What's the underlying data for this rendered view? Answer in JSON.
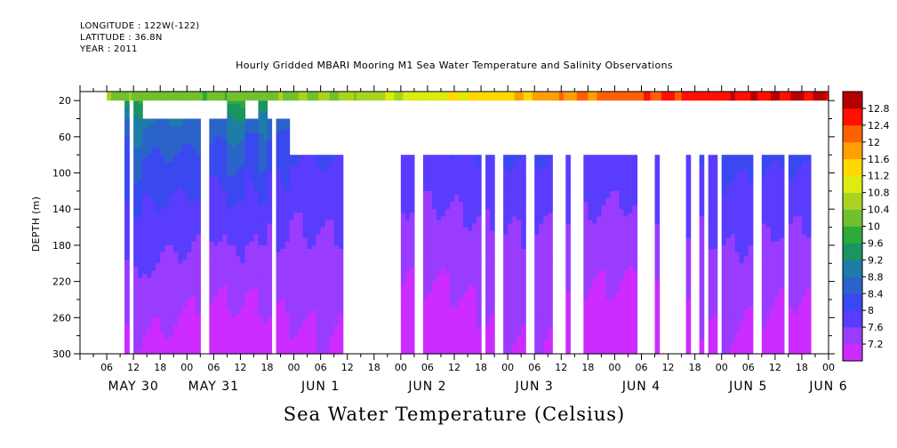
{
  "header": {
    "longitude": "LONGITUDE : 122W(-122)",
    "latitude": "LATITUDE : 36.8N",
    "year": "YEAR : 2011",
    "title": "Hourly Gridded MBARI Mooring M1 Sea Water Temperature and Salinity Observations"
  },
  "chart_data": {
    "type": "heatmap",
    "title": "Hourly Gridded MBARI Mooring M1 Sea Water Temperature and Salinity Observations",
    "xlabel": "Sea Water Temperature (Celsius)",
    "ylabel": "DEPTH (m)",
    "ylim": [
      300,
      10
    ],
    "yticks": [
      20,
      60,
      100,
      140,
      180,
      220,
      260,
      300
    ],
    "x_range_hours": [
      0,
      168
    ],
    "x_start": "May 30 2011 00:00",
    "hour_tick_labels": [
      "06",
      "12",
      "18",
      "00",
      "06",
      "12",
      "18",
      "00",
      "06",
      "12",
      "18",
      "00",
      "06",
      "12",
      "18",
      "00",
      "06",
      "12",
      "18",
      "00",
      "06",
      "12",
      "18",
      "00",
      "06",
      "12",
      "18",
      "00"
    ],
    "hour_tick_hours": [
      6,
      12,
      18,
      24,
      30,
      36,
      42,
      48,
      54,
      60,
      66,
      72,
      78,
      84,
      90,
      96,
      102,
      108,
      114,
      120,
      126,
      132,
      138,
      144,
      150,
      156,
      162,
      168
    ],
    "date_labels": [
      {
        "label": "MAY 30",
        "hour": 12
      },
      {
        "label": "MAY 31",
        "hour": 30
      },
      {
        "label": "JUN  1",
        "hour": 54
      },
      {
        "label": "JUN  2",
        "hour": 78
      },
      {
        "label": "JUN  3",
        "hour": 102
      },
      {
        "label": "JUN  4",
        "hour": 126
      },
      {
        "label": "JUN  5",
        "hour": 150
      },
      {
        "label": "JUN  6",
        "hour": 168
      }
    ],
    "colorbar": {
      "levels": [
        7.2,
        7.6,
        8,
        8.4,
        8.8,
        9.2,
        9.6,
        10,
        10.4,
        10.8,
        11.2,
        11.6,
        12,
        12.4,
        12.8
      ],
      "labels": [
        "7.2",
        "7.6",
        "8",
        "8.4",
        "8.8",
        "9.2",
        "9.6",
        "10",
        "10.4",
        "10.8",
        "11.2",
        "11.6",
        "12",
        "12.4",
        "12.8"
      ],
      "colors": [
        "#cc2cff",
        "#9a3cff",
        "#5a3cff",
        "#3a48f0",
        "#2a64c8",
        "#1e7ca8",
        "#1a9460",
        "#2eaa3a",
        "#72c030",
        "#a8d420",
        "#dcec10",
        "#ffd800",
        "#ffa000",
        "#ff6000",
        "#ff1000",
        "#b40000"
      ]
    },
    "surface_row": {
      "depth_range": [
        10,
        20
      ],
      "start_hour": 6,
      "temps_at_hours": [
        {
          "hour": 6,
          "t": 10.3
        },
        {
          "hour": 30,
          "t": 10.1
        },
        {
          "hour": 60,
          "t": 10.5
        },
        {
          "hour": 84,
          "t": 11.2
        },
        {
          "hour": 96,
          "t": 11.5
        },
        {
          "hour": 108,
          "t": 11.9
        },
        {
          "hour": 120,
          "t": 12.2
        },
        {
          "hour": 140,
          "t": 12.6
        },
        {
          "hour": 168,
          "t": 12.9
        }
      ]
    },
    "data_blocks": [
      {
        "h0": 10,
        "h1": 11,
        "top": 20,
        "sfc": 9.6
      },
      {
        "h0": 10,
        "h1": 11,
        "top": 40,
        "sfc": 9.2
      },
      {
        "h0": 12,
        "h1": 14,
        "top": 20,
        "sfc": 9.8
      },
      {
        "h0": 14,
        "h1": 27,
        "top": 40,
        "sfc": 9.4
      },
      {
        "h0": 29,
        "h1": 33,
        "top": 40,
        "sfc": 9.3
      },
      {
        "h0": 33,
        "h1": 37,
        "top": 20,
        "sfc": 9.9
      },
      {
        "h0": 37,
        "h1": 40,
        "top": 40,
        "sfc": 9.2
      },
      {
        "h0": 40,
        "h1": 42,
        "top": 20,
        "sfc": 9.7
      },
      {
        "h0": 40,
        "h1": 41,
        "top": 20,
        "sfc": 9.7
      },
      {
        "h0": 42,
        "h1": 43,
        "top": 40,
        "sfc": 9.1
      },
      {
        "h0": 44,
        "h1": 47,
        "top": 40,
        "sfc": 9.1
      },
      {
        "h0": 47,
        "h1": 59,
        "top": 80,
        "sfc": 8.7
      },
      {
        "h0": 72,
        "h1": 75,
        "top": 80,
        "sfc": 8.7
      },
      {
        "h0": 77,
        "h1": 90,
        "top": 80,
        "sfc": 8.7
      },
      {
        "h0": 91,
        "h1": 93,
        "top": 80,
        "sfc": 8.7
      },
      {
        "h0": 95,
        "h1": 100,
        "top": 80,
        "sfc": 8.7
      },
      {
        "h0": 102,
        "h1": 106,
        "top": 80,
        "sfc": 8.7
      },
      {
        "h0": 109,
        "h1": 110,
        "top": 80,
        "sfc": 8.7
      },
      {
        "h0": 113,
        "h1": 125,
        "top": 80,
        "sfc": 8.7
      },
      {
        "h0": 129,
        "h1": 130,
        "top": 80,
        "sfc": 8.7
      },
      {
        "h0": 136,
        "h1": 137,
        "top": 80,
        "sfc": 8.7
      },
      {
        "h0": 139,
        "h1": 140,
        "top": 80,
        "sfc": 8.7
      },
      {
        "h0": 141,
        "h1": 143,
        "top": 80,
        "sfc": 8.7
      },
      {
        "h0": 144,
        "h1": 151,
        "top": 80,
        "sfc": 9.0
      },
      {
        "h0": 153,
        "h1": 158,
        "top": 80,
        "sfc": 9.0
      },
      {
        "h0": 159,
        "h1": 164,
        "top": 80,
        "sfc": 9.1
      }
    ]
  },
  "xaxis_title": "Sea Water Temperature (Celsius)",
  "yaxis_title": "DEPTH (m)"
}
